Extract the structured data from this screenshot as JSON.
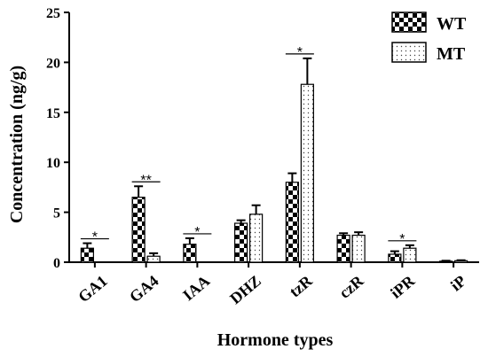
{
  "chart_data": {
    "type": "bar",
    "xlabel": "Hormone types",
    "ylabel": "Concentration (ng/g)",
    "ylim": [
      0,
      25
    ],
    "yticks": [
      0,
      5,
      10,
      15,
      20,
      25
    ],
    "categories": [
      "GA1",
      "GA4",
      "IAA",
      "DHZ",
      "tzR",
      "czR",
      "iPR",
      "iP"
    ],
    "series": [
      {
        "name": "WT",
        "pattern": "checker",
        "values": [
          1.4,
          6.5,
          1.8,
          3.9,
          8.0,
          2.7,
          0.8,
          0.1
        ],
        "errors": [
          0.5,
          1.1,
          0.6,
          0.3,
          0.9,
          0.2,
          0.3,
          0.05
        ]
      },
      {
        "name": "MT",
        "pattern": "dots",
        "values": [
          0.0,
          0.6,
          0.0,
          4.8,
          17.8,
          2.7,
          1.4,
          0.15
        ],
        "errors": [
          0.0,
          0.3,
          0.0,
          0.9,
          2.6,
          0.3,
          0.3,
          0.05
        ]
      }
    ],
    "significance": [
      {
        "category": "GA1",
        "label": "*"
      },
      {
        "category": "GA4",
        "label": "**"
      },
      {
        "category": "IAA",
        "label": "*"
      },
      {
        "category": "tzR",
        "label": "*"
      },
      {
        "category": "iPR",
        "label": "*"
      }
    ],
    "legend": {
      "position": "top-right"
    },
    "grid": false
  }
}
